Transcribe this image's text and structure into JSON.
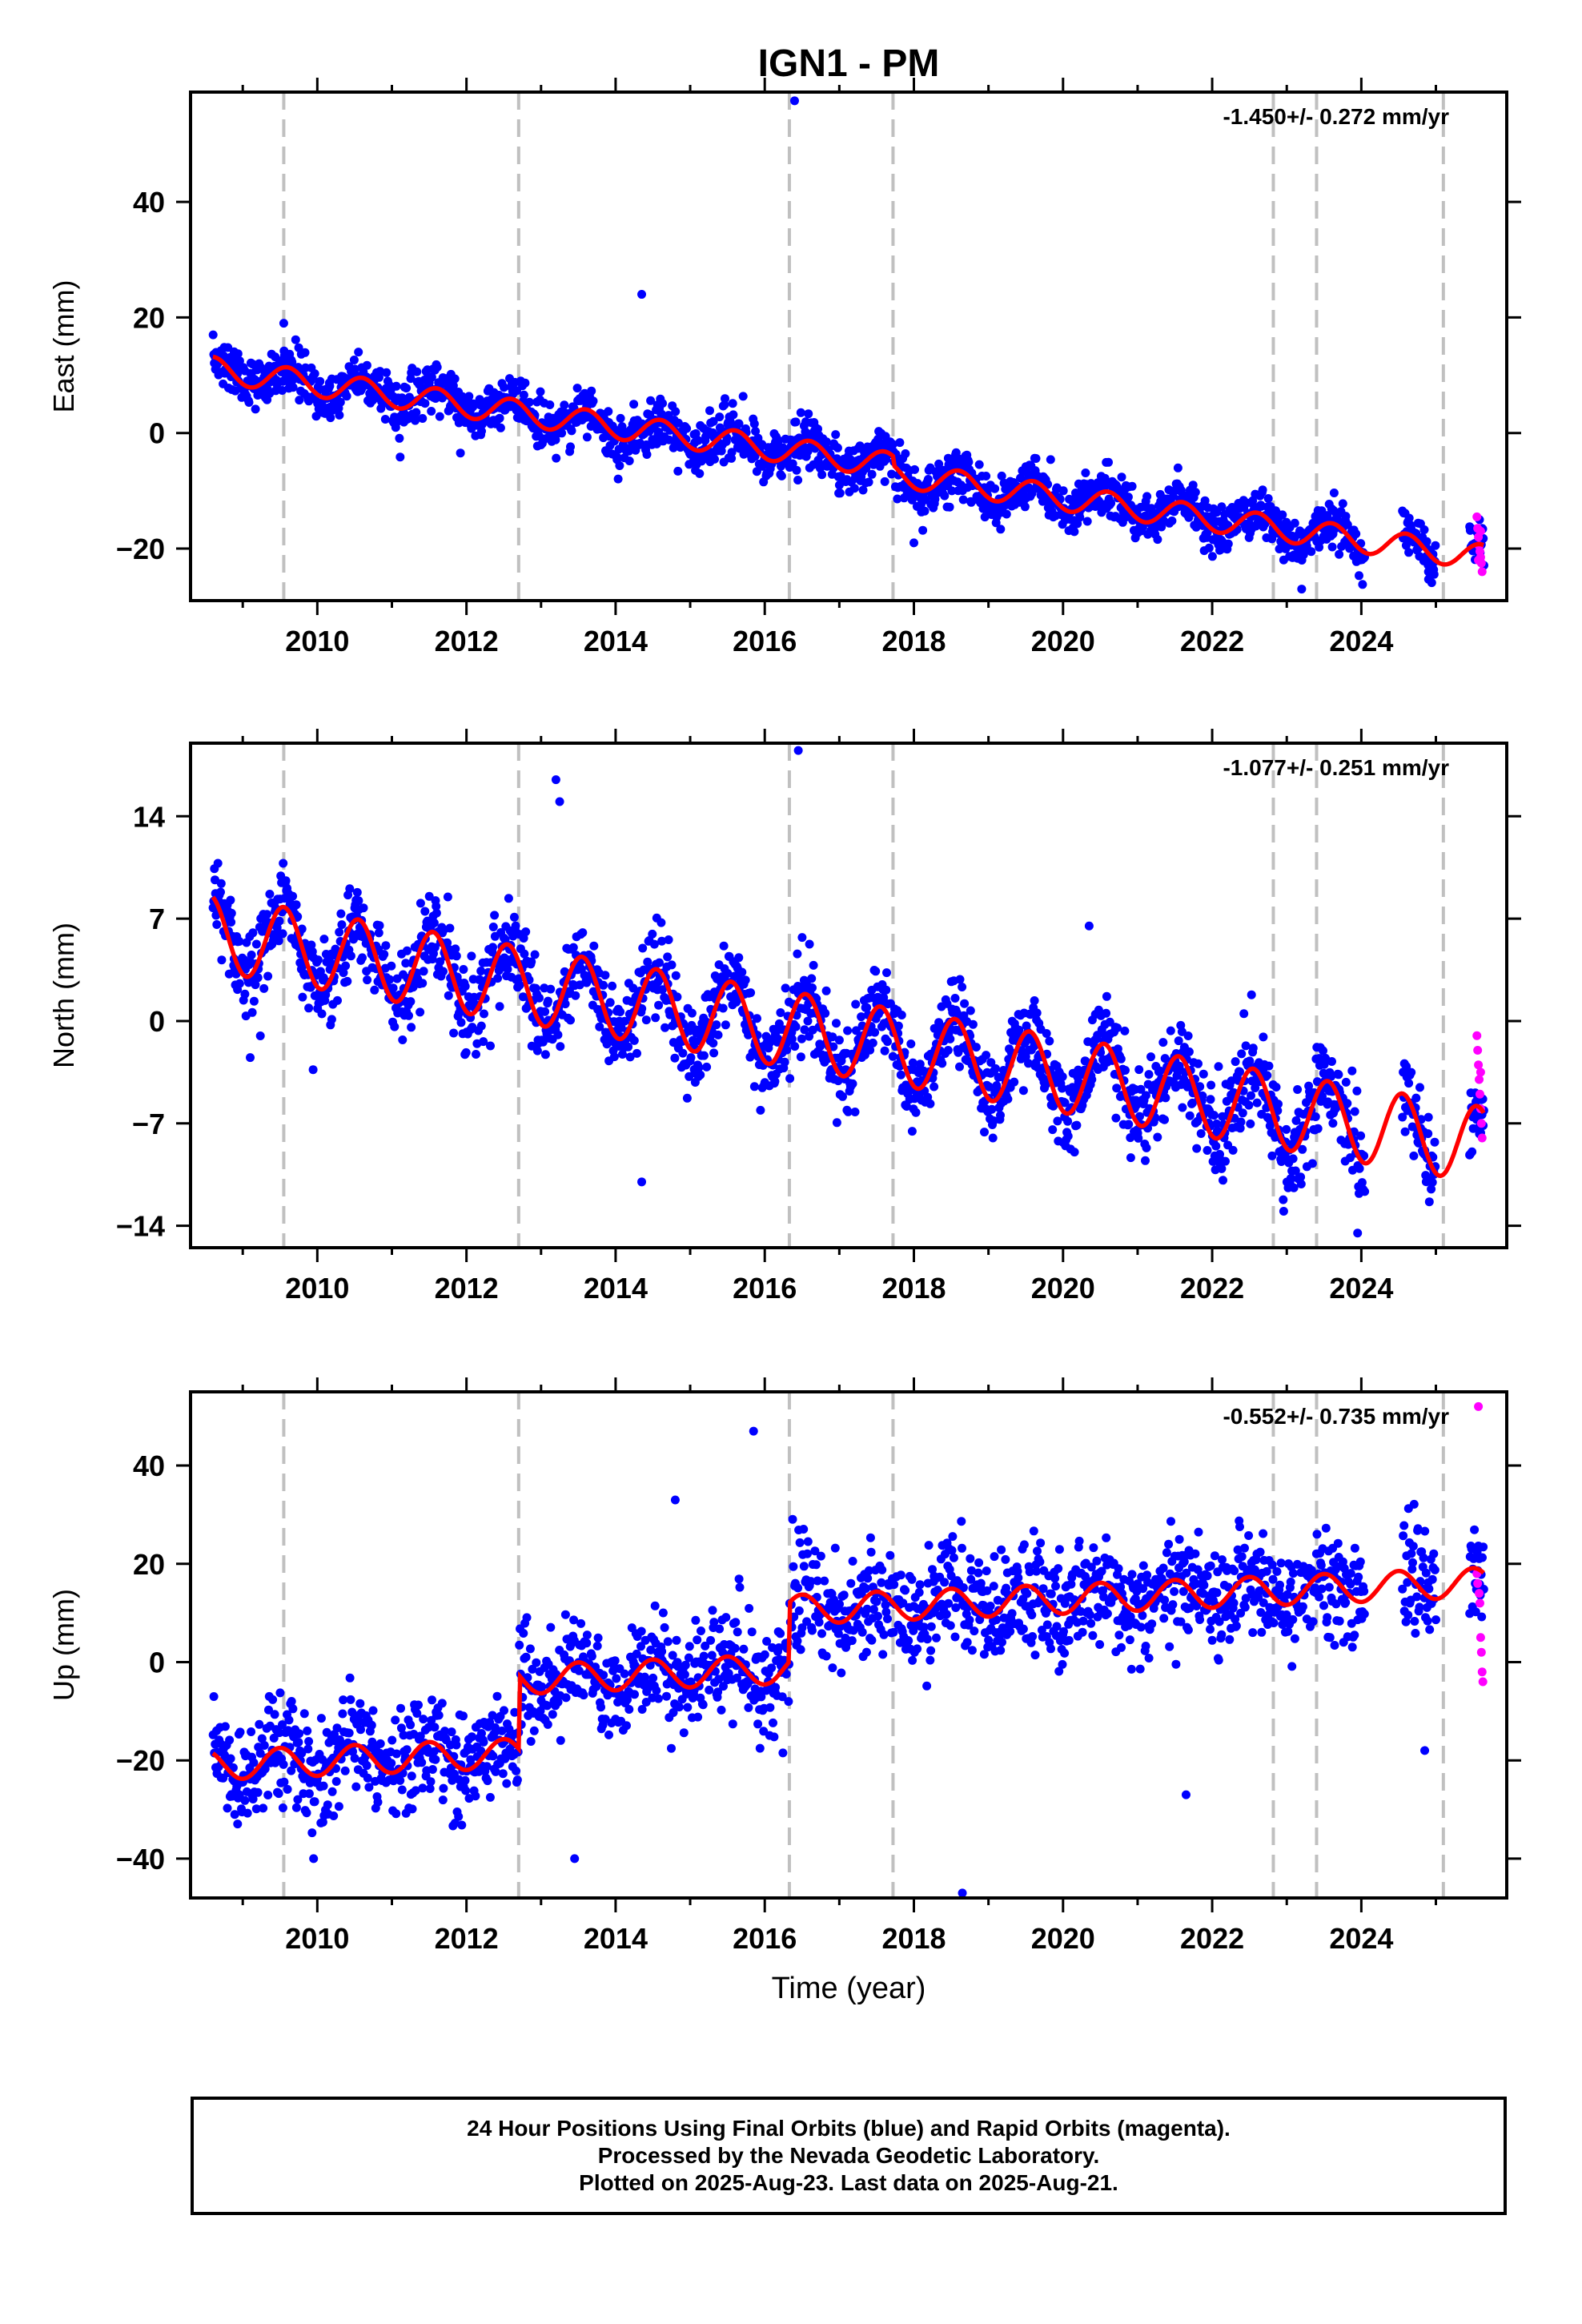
{
  "title": "IGN1 - PM",
  "caption": {
    "line1": "24 Hour Positions Using Final Orbits (blue) and Rapid Orbits (magenta).",
    "line2": "Processed by the Nevada Geodetic Laboratory.",
    "line3": "Plotted on 2025-Aug-23. Last data on 2025-Aug-21."
  },
  "colors": {
    "final_orbits": "#0000ff",
    "rapid_orbits": "#ff00ff",
    "model_fit": "#ff0000",
    "event_lines": "#c0c0c0"
  },
  "chart_data": [
    {
      "type": "scatter",
      "title": "IGN1 - PM",
      "xlabel": "",
      "ylabel": "East (mm)",
      "rate_annotation": "-1.450+/- 0.272 mm/yr",
      "xlim": [
        2008.3,
        2025.95
      ],
      "ylim": [
        -29,
        59
      ],
      "x_ticks": [
        "2010",
        "2012",
        "2014",
        "2016",
        "2018",
        "2020",
        "2022",
        "2024"
      ],
      "y_ticks": [
        "40",
        "20",
        "0",
        "−20"
      ],
      "event_lines": [
        2009.55,
        2012.7,
        2016.33,
        2017.72,
        2022.82,
        2023.4,
        2025.1
      ],
      "trend": {
        "x0": 2008.6,
        "y0": 11.0,
        "slope": -1.82,
        "annual_amp": 2.2,
        "annual_phase": 0.6,
        "offsets": [
          [
            2017.72,
            -1.5
          ]
        ]
      },
      "scatter_sd": 2.1,
      "density_per_year": 120,
      "data_x_range": [
        2008.6,
        2025.65
      ],
      "gaps": [
        [
          2024.05,
          2024.55
        ],
        [
          2025.0,
          2025.45
        ]
      ],
      "spikes": [
        [
          2016.4,
          57.5
        ],
        [
          2014.35,
          24.0
        ],
        [
          2009.55,
          19.0
        ],
        [
          2018.0,
          -19.0
        ],
        [
          2023.2,
          -27.0
        ],
        [
          2024.9,
          -24.0
        ]
      ],
      "rapid_orbit_points": [
        [
          2025.55,
          -14.5
        ],
        [
          2025.56,
          -16.5
        ],
        [
          2025.57,
          -18.0
        ],
        [
          2025.58,
          -19.5
        ],
        [
          2025.59,
          -20.5
        ],
        [
          2025.6,
          -21.5
        ],
        [
          2025.61,
          -22.5
        ],
        [
          2025.62,
          -24.0
        ],
        [
          2025.6,
          -17.0
        ],
        [
          2025.57,
          -22.0
        ]
      ],
      "model_fit_note": "red curve"
    },
    {
      "type": "scatter",
      "title": "",
      "xlabel": "",
      "ylabel": "North (mm)",
      "rate_annotation": "-1.077+/- 0.251 mm/yr",
      "xlim": [
        2008.3,
        2025.95
      ],
      "ylim": [
        -15.5,
        19
      ],
      "x_ticks": [
        "2010",
        "2012",
        "2014",
        "2016",
        "2018",
        "2020",
        "2022",
        "2024"
      ],
      "y_ticks": [
        "14",
        "7",
        "0",
        "−7",
        "−14"
      ],
      "event_lines": [
        2009.55,
        2012.7,
        2016.33,
        2017.72,
        2022.82,
        2023.4,
        2025.1
      ],
      "trend": {
        "x0": 2008.6,
        "y0": 6.0,
        "slope": -0.85,
        "annual_amp": 2.6,
        "annual_phase": 0.55,
        "offsets": []
      },
      "scatter_sd": 1.5,
      "density_per_year": 120,
      "data_x_range": [
        2008.6,
        2025.65
      ],
      "gaps": [
        [
          2024.05,
          2024.55
        ],
        [
          2025.0,
          2025.45
        ]
      ],
      "spikes": [
        [
          2016.45,
          18.5
        ],
        [
          2013.2,
          16.5
        ],
        [
          2013.25,
          15.0
        ],
        [
          2014.35,
          -11.0
        ],
        [
          2020.35,
          6.5
        ],
        [
          2023.95,
          -14.5
        ],
        [
          2009.1,
          -2.5
        ]
      ],
      "rapid_orbit_points": [
        [
          2025.55,
          -1.0
        ],
        [
          2025.56,
          -2.0
        ],
        [
          2025.57,
          -3.0
        ],
        [
          2025.58,
          -4.0
        ],
        [
          2025.59,
          -5.0
        ],
        [
          2025.6,
          -6.0
        ],
        [
          2025.61,
          -7.0
        ],
        [
          2025.62,
          -8.0
        ],
        [
          2025.6,
          -3.5
        ]
      ],
      "model_fit_note": "red curve"
    },
    {
      "type": "scatter",
      "title": "",
      "xlabel": "Time (year)",
      "ylabel": "Up (mm)",
      "rate_annotation": "-0.552+/- 0.735 mm/yr",
      "xlim": [
        2008.3,
        2025.95
      ],
      "ylim": [
        -48,
        55
      ],
      "x_ticks": [
        "2010",
        "2012",
        "2014",
        "2016",
        "2018",
        "2020",
        "2022",
        "2024"
      ],
      "y_ticks": [
        "40",
        "20",
        "0",
        "−20",
        "−40"
      ],
      "event_lines": [
        2009.55,
        2012.7,
        2016.33,
        2017.72,
        2022.82,
        2023.4,
        2025.1
      ],
      "trend": {
        "x0": 2008.6,
        "y0": -21.0,
        "slope": 0.6,
        "annual_amp": 3.0,
        "annual_phase": 0.5,
        "offsets": [
          [
            2012.7,
            15.0
          ],
          [
            2016.33,
            12.0
          ]
        ]
      },
      "scatter_sd": 5.5,
      "density_per_year": 110,
      "data_x_range": [
        2008.6,
        2025.65
      ],
      "gaps": [
        [
          2024.05,
          2024.55
        ],
        [
          2025.0,
          2025.45
        ]
      ],
      "spikes": [
        [
          2015.85,
          47.0
        ],
        [
          2014.8,
          33.0
        ],
        [
          2018.65,
          -47.0
        ],
        [
          2021.65,
          -27.0
        ],
        [
          2009.95,
          -40.0
        ],
        [
          2013.45,
          -40.0
        ],
        [
          2024.85,
          -18.0
        ]
      ],
      "rapid_orbit_points": [
        [
          2025.57,
          52.0
        ],
        [
          2025.55,
          18.0
        ],
        [
          2025.56,
          16.0
        ],
        [
          2025.58,
          14.0
        ],
        [
          2025.59,
          12.0
        ],
        [
          2025.6,
          5.0
        ],
        [
          2025.61,
          2.0
        ],
        [
          2025.62,
          -2.0
        ],
        [
          2025.63,
          -4.0
        ]
      ],
      "model_fit_note": "red curve"
    }
  ]
}
